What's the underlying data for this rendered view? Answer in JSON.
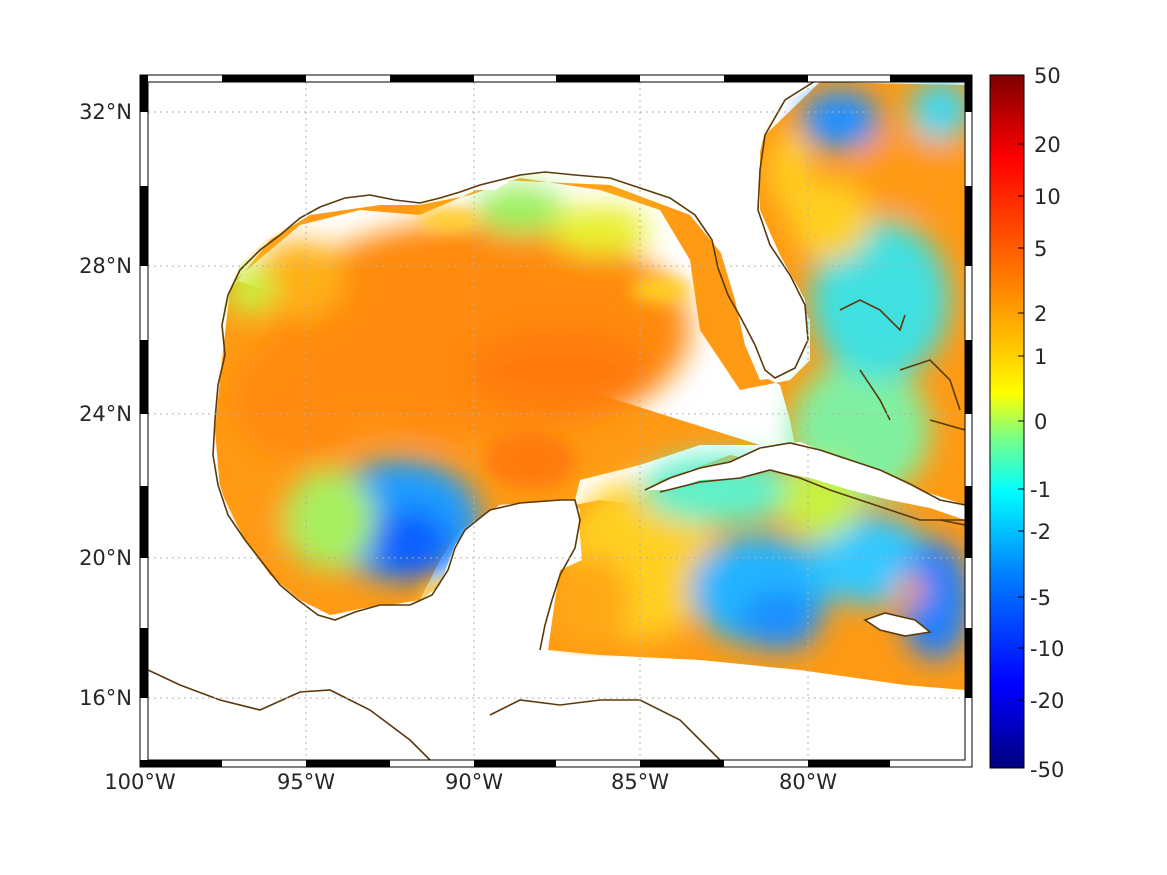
{
  "map": {
    "lat_labels": [
      "32°N",
      "28°N",
      "24°N",
      "20°N",
      "16°N"
    ],
    "lon_labels": [
      "100°W",
      "95°W",
      "90°W",
      "85°W",
      "80°W"
    ],
    "grid": "dotted",
    "frame": "black-white checkered"
  },
  "colorbar": {
    "labels": [
      "50",
      "20",
      "10",
      "5",
      "2",
      "1",
      "0",
      "-1",
      "-2",
      "-5",
      "-10",
      "-20",
      "-50"
    ],
    "colormap": "jet",
    "top_color": "#7f0000",
    "bottom_color": "#00007f"
  },
  "colors": {
    "coast": "#5a3a0a",
    "ocean_orange": "#ff9a14",
    "ocean_yellow": "#f0f020",
    "ocean_blue": "#1e78ff",
    "ocean_cyan": "#20e0f0"
  }
}
